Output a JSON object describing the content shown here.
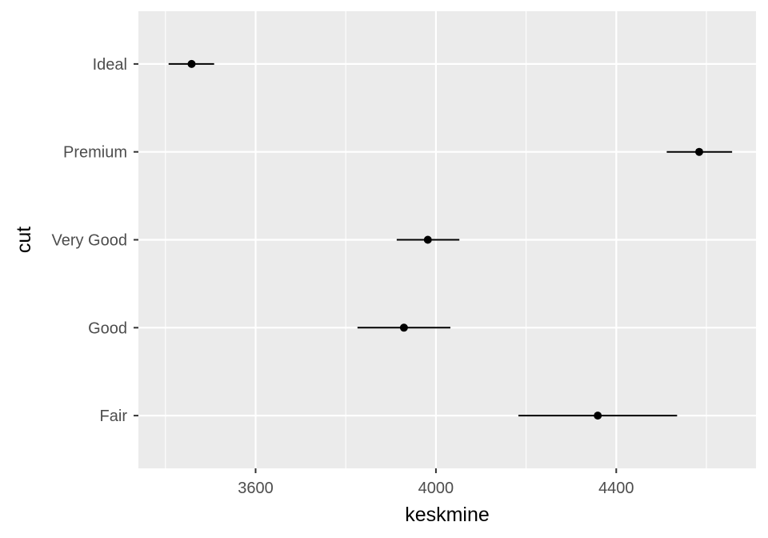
{
  "chart_data": {
    "type": "pointrange",
    "xlabel": "keskmine",
    "ylabel": "cut",
    "categories": [
      "Fair",
      "Good",
      "Very Good",
      "Premium",
      "Ideal"
    ],
    "series": [
      {
        "points": [
          {
            "cut": "Fair",
            "x": 4359,
            "xmin": 4183,
            "xmax": 4535
          },
          {
            "cut": "Good",
            "x": 3929,
            "xmin": 3826,
            "xmax": 4032
          },
          {
            "cut": "Very Good",
            "x": 3982,
            "xmin": 3913,
            "xmax": 4052
          },
          {
            "cut": "Premium",
            "x": 4584,
            "xmin": 4512,
            "xmax": 4657
          },
          {
            "cut": "Ideal",
            "x": 3458,
            "xmin": 3407,
            "xmax": 3508
          }
        ]
      }
    ],
    "xlim": [
      3340,
      4710
    ],
    "xticks": [
      3600,
      4000,
      4400
    ],
    "xtick_labels": [
      "3600",
      "4000",
      "4400"
    ],
    "grid": true,
    "legend": "none",
    "colors": {
      "panel": "#ebebeb",
      "grid": "#ffffff",
      "mark": "#000000",
      "tick_text": "#4d4d4d"
    }
  }
}
